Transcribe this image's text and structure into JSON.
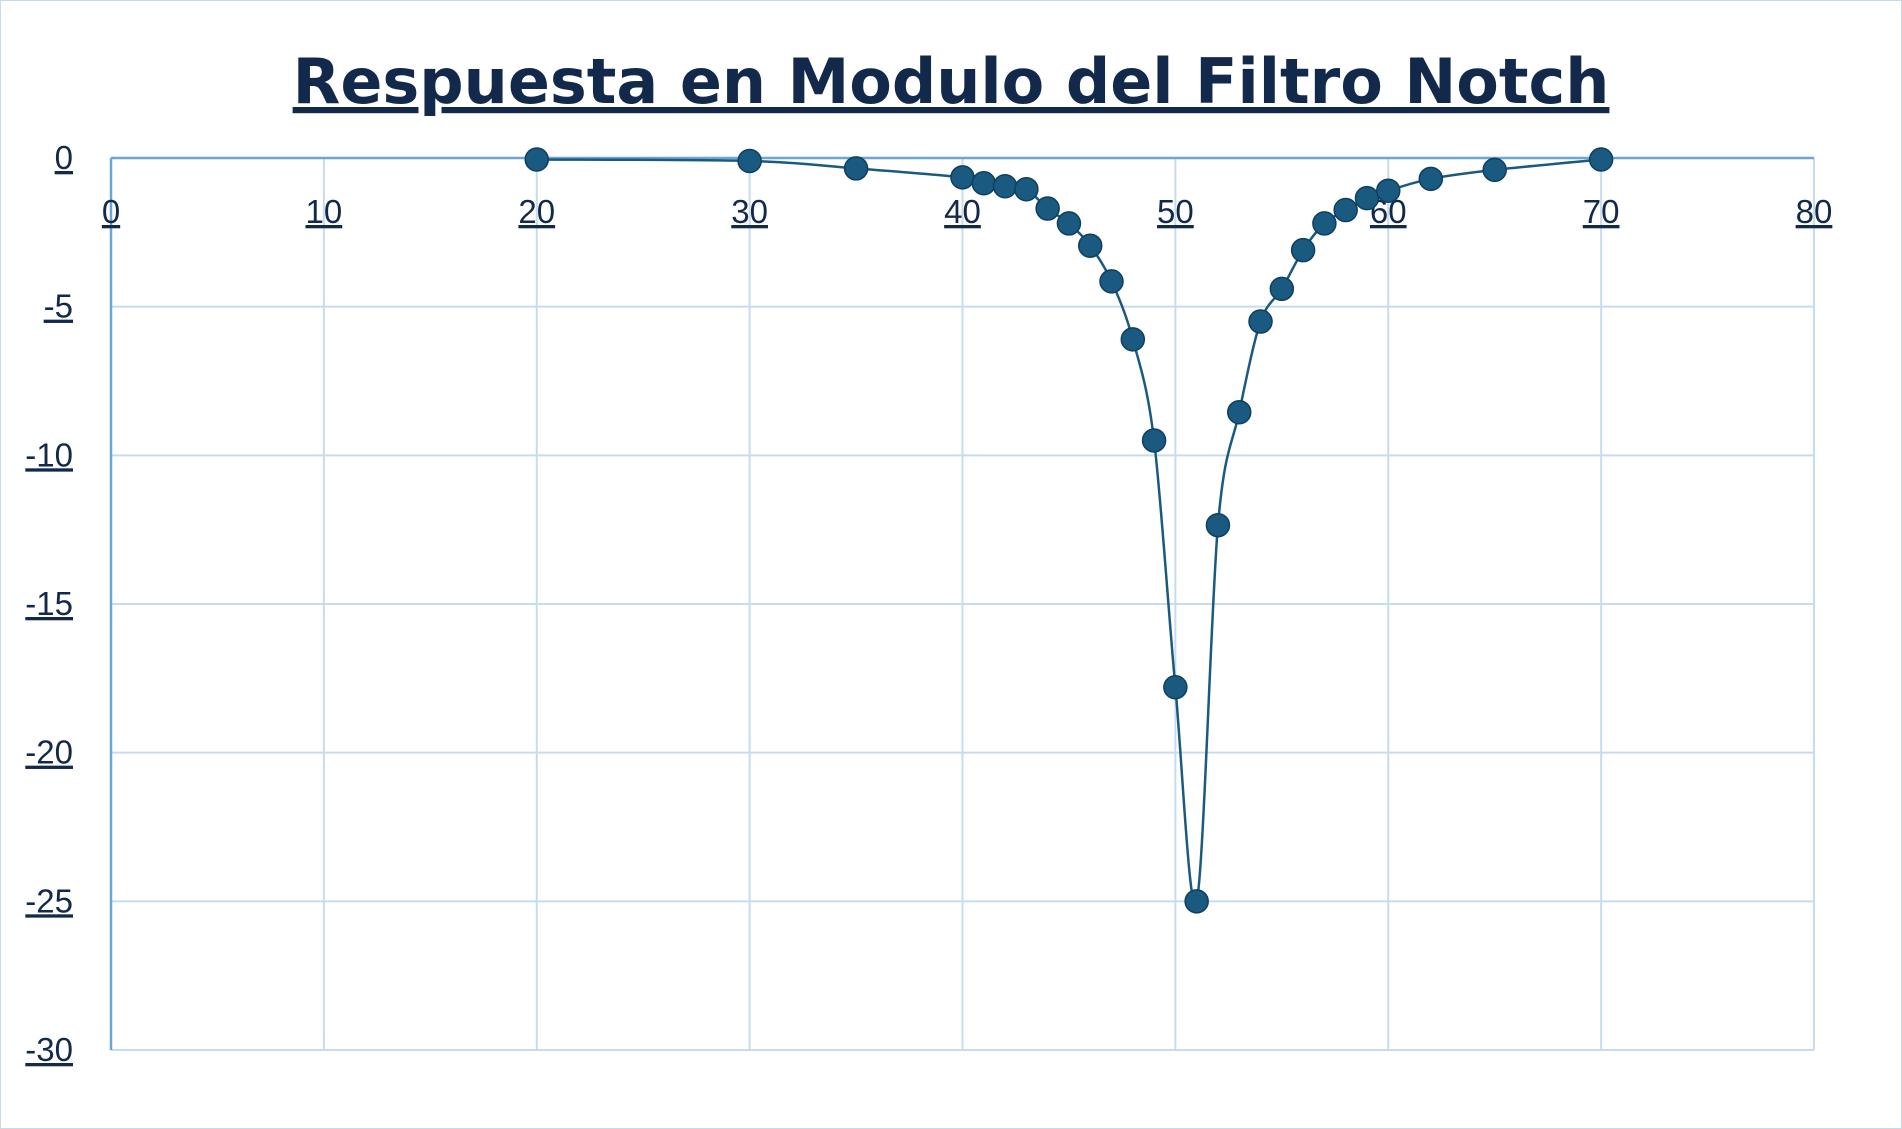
{
  "chart_data": {
    "type": "scatter",
    "title": "Respuesta en Modulo del Filtro Notch",
    "xlabel": "",
    "ylabel": "",
    "xlim": [
      0,
      80
    ],
    "ylim": [
      -30,
      0
    ],
    "x_ticks": [
      0,
      10,
      20,
      30,
      40,
      50,
      60,
      70,
      80
    ],
    "y_ticks": [
      0,
      -5,
      -10,
      -15,
      -20,
      -25,
      -30
    ],
    "grid": true,
    "legend": "none",
    "smooth_line": true,
    "marker_color": "#1a5a80",
    "line_color": "#1a5a80",
    "series": [
      {
        "x": [
          20,
          30,
          35,
          40,
          41,
          42,
          43,
          44,
          45,
          46,
          47,
          48,
          49,
          50,
          51,
          52,
          53,
          54,
          55,
          56,
          57,
          58,
          59,
          60,
          62,
          65,
          70
        ],
        "y": [
          -0.05,
          -0.1,
          -0.35,
          -0.65,
          -0.85,
          -0.95,
          -1.05,
          -1.7,
          -2.2,
          -2.95,
          -4.15,
          -6.1,
          -9.5,
          -17.8,
          -25.0,
          -12.35,
          -8.55,
          -5.5,
          -4.4,
          -3.1,
          -2.2,
          -1.75,
          -1.35,
          -1.1,
          -0.7,
          -0.4,
          -0.05
        ]
      }
    ]
  }
}
